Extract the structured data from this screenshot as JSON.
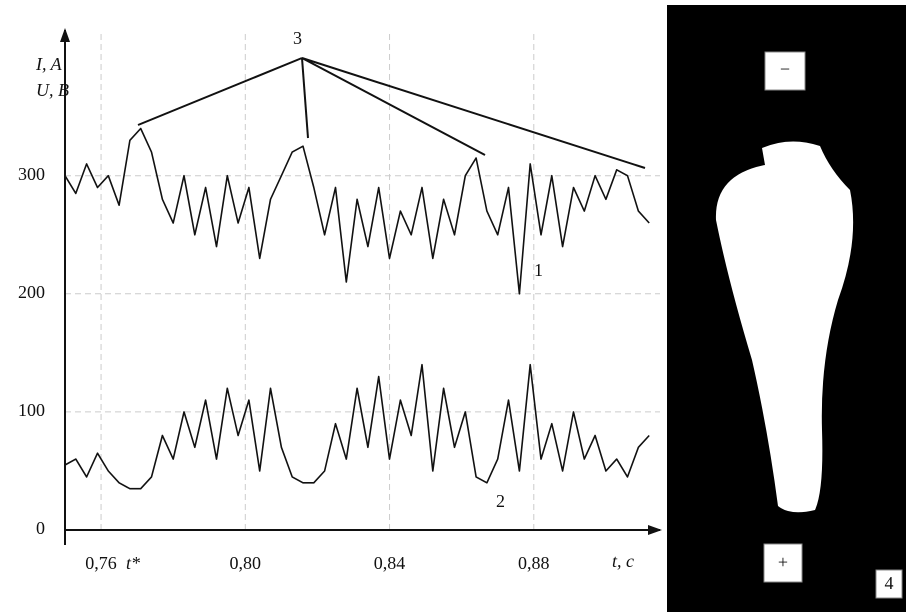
{
  "chart_data": {
    "type": "line",
    "y_label_1": "I, A",
    "y_label_2": "U, B",
    "x_label": "t, c",
    "t_star": "t*",
    "annotations": [
      "1",
      "2",
      "3",
      "4",
      "−",
      "+"
    ],
    "x": [
      0.75,
      0.753,
      0.756,
      0.759,
      0.762,
      0.765,
      0.768,
      0.771,
      0.774,
      0.777,
      0.78,
      0.783,
      0.786,
      0.789,
      0.792,
      0.795,
      0.798,
      0.801,
      0.804,
      0.807,
      0.81,
      0.813,
      0.816,
      0.819,
      0.822,
      0.825,
      0.828,
      0.831,
      0.834,
      0.837,
      0.84,
      0.843,
      0.846,
      0.849,
      0.852,
      0.855,
      0.858,
      0.861,
      0.864,
      0.867,
      0.87,
      0.873,
      0.876,
      0.879,
      0.882,
      0.885,
      0.888,
      0.891,
      0.894,
      0.897,
      0.9,
      0.903,
      0.906,
      0.909,
      0.912
    ],
    "series": [
      {
        "color": "#111111",
        "values": [
          300,
          285,
          310,
          290,
          300,
          275,
          330,
          340,
          320,
          280,
          260,
          300,
          250,
          290,
          240,
          300,
          260,
          290,
          230,
          280,
          300,
          320,
          325,
          290,
          250,
          290,
          210,
          280,
          240,
          290,
          230,
          270,
          250,
          290,
          230,
          280,
          250,
          300,
          315,
          270,
          250,
          290,
          200,
          310,
          250,
          300,
          240,
          290,
          270,
          300,
          280,
          305,
          300,
          270,
          260
        ]
      },
      {
        "color": "#111111",
        "values": [
          55,
          60,
          45,
          65,
          50,
          40,
          35,
          35,
          45,
          80,
          60,
          100,
          70,
          110,
          60,
          120,
          80,
          110,
          50,
          120,
          70,
          45,
          40,
          40,
          50,
          90,
          60,
          120,
          70,
          130,
          60,
          110,
          80,
          140,
          50,
          120,
          70,
          100,
          45,
          40,
          60,
          110,
          50,
          140,
          60,
          90,
          50,
          100,
          60,
          80,
          50,
          60,
          45,
          70,
          80
        ]
      }
    ],
    "xlim": [
      0.75,
      0.915
    ],
    "xticks": [
      {
        "value": 0.76,
        "label": "0,76"
      },
      {
        "value": 0.8,
        "label": "0,80"
      },
      {
        "value": 0.84,
        "label": "0,84"
      },
      {
        "value": 0.88,
        "label": "0,88"
      }
    ],
    "ylim": [
      0,
      420
    ],
    "yticks": [
      0,
      100,
      200,
      300
    ],
    "grid": true
  }
}
